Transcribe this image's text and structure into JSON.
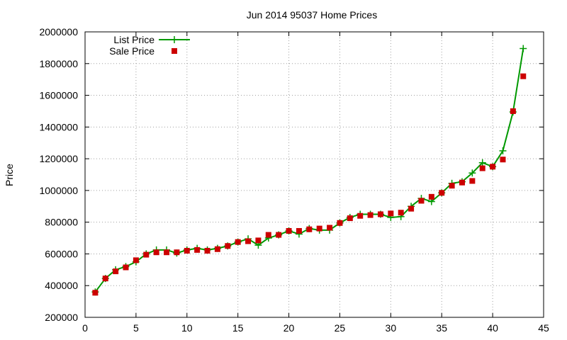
{
  "chart_data": {
    "type": "line",
    "title": "Jun 2014 95037 Home Prices",
    "xlabel": "",
    "ylabel": "Price",
    "xlim": [
      0,
      45
    ],
    "ylim": [
      200000,
      2000000
    ],
    "xticks": [
      "0",
      "5",
      "10",
      "15",
      "20",
      "25",
      "30",
      "35",
      "40",
      "45"
    ],
    "yticks": [
      "200000",
      "400000",
      "600000",
      "800000",
      "1000000",
      "1200000",
      "1400000",
      "1600000",
      "1800000",
      "2000000"
    ],
    "grid": true,
    "legend": "top-left",
    "series": [
      {
        "name": "List Price",
        "style": "lines+points",
        "marker": "plus",
        "color": "#009900",
        "x": [
          1,
          2,
          3,
          4,
          5,
          6,
          7,
          8,
          9,
          10,
          11,
          12,
          13,
          14,
          15,
          16,
          17,
          18,
          19,
          20,
          21,
          22,
          23,
          24,
          25,
          26,
          27,
          28,
          29,
          30,
          31,
          32,
          33,
          34,
          35,
          36,
          37,
          38,
          39,
          40,
          41,
          42,
          43
        ],
        "y": [
          360000,
          445000,
          500000,
          520000,
          550000,
          600000,
          625000,
          625000,
          605000,
          625000,
          635000,
          625000,
          635000,
          650000,
          675000,
          695000,
          655000,
          700000,
          720000,
          745000,
          725000,
          760000,
          750000,
          750000,
          795000,
          830000,
          850000,
          850000,
          850000,
          830000,
          835000,
          900000,
          950000,
          930000,
          985000,
          1045000,
          1055000,
          1110000,
          1175000,
          1150000,
          1250000,
          1495000,
          1895000
        ]
      },
      {
        "name": "Sale Price",
        "style": "points",
        "marker": "square",
        "color": "#cc0000",
        "x": [
          1,
          2,
          3,
          4,
          5,
          6,
          7,
          8,
          9,
          10,
          11,
          12,
          13,
          14,
          15,
          16,
          17,
          18,
          19,
          20,
          21,
          22,
          23,
          24,
          25,
          26,
          27,
          28,
          29,
          30,
          31,
          32,
          33,
          34,
          35,
          36,
          37,
          38,
          39,
          40,
          41,
          42,
          43
        ],
        "y": [
          355000,
          445000,
          490000,
          515000,
          560000,
          595000,
          610000,
          610000,
          610000,
          620000,
          625000,
          620000,
          630000,
          650000,
          675000,
          680000,
          685000,
          720000,
          720000,
          745000,
          745000,
          755000,
          760000,
          765000,
          795000,
          825000,
          840000,
          845000,
          850000,
          855000,
          860000,
          885000,
          935000,
          960000,
          985000,
          1030000,
          1050000,
          1060000,
          1140000,
          1150000,
          1195000,
          1500000,
          1720000
        ]
      }
    ]
  }
}
